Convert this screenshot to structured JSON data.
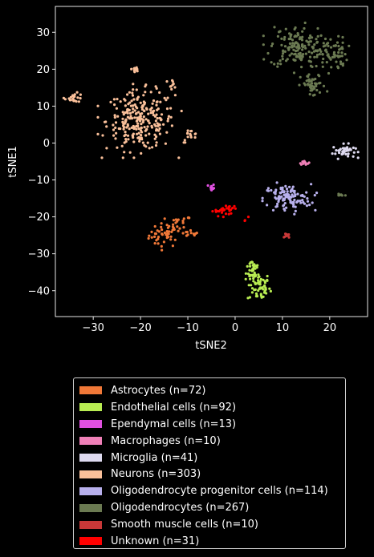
{
  "chart_data": {
    "type": "scatter",
    "xlabel": "tSNE2",
    "ylabel": "tSNE1",
    "xlim": [
      -38,
      28
    ],
    "ylim": [
      -47,
      37
    ],
    "xticks": [
      -30,
      -20,
      -10,
      0,
      10,
      20
    ],
    "yticks": [
      -40,
      -30,
      -20,
      -10,
      0,
      10,
      20,
      30
    ],
    "grid": false,
    "legend_position": "below-plot",
    "series": [
      {
        "name": "Astrocytes (n=72)",
        "color": "#f07838",
        "n": 72,
        "clusters": [
          {
            "cx": -15,
            "cy": -25,
            "sx": 1.6,
            "sy": 1.6,
            "f": 0.55
          },
          {
            "cx": -12,
            "cy": -22,
            "sx": 1.4,
            "sy": 1.2,
            "f": 0.3
          },
          {
            "cx": -9.5,
            "cy": -24.5,
            "sx": 0.8,
            "sy": 0.5,
            "f": 0.15
          }
        ]
      },
      {
        "name": "Endothelial cells (n=92)",
        "color": "#b8ec52",
        "n": 92,
        "clusters": [
          {
            "cx": 5,
            "cy": -39,
            "sx": 1.2,
            "sy": 2.0,
            "f": 0.65
          },
          {
            "cx": 3.8,
            "cy": -34,
            "sx": 0.7,
            "sy": 1.6,
            "f": 0.35
          }
        ]
      },
      {
        "name": "Ependymal cells (n=13)",
        "color": "#e050e0",
        "n": 13,
        "clusters": [
          {
            "cx": -5,
            "cy": -12.2,
            "sx": 0.3,
            "sy": 0.6,
            "f": 1.0
          }
        ]
      },
      {
        "name": "Macrophages (n=10)",
        "color": "#f080b8",
        "n": 10,
        "clusters": [
          {
            "cx": 14.5,
            "cy": -5.2,
            "sx": 0.5,
            "sy": 0.3,
            "f": 1.0
          }
        ]
      },
      {
        "name": "Microglia (n=41)",
        "color": "#dedaf0",
        "n": 41,
        "clusters": [
          {
            "cx": 23,
            "cy": -2.2,
            "sx": 1.2,
            "sy": 0.9,
            "f": 1.0
          }
        ]
      },
      {
        "name": "Neurons (n=303)",
        "color": "#fac09a",
        "n": 303,
        "clusters": [
          {
            "cx": -20,
            "cy": 6,
            "sx": 3.6,
            "sy": 4.0,
            "f": 0.82
          },
          {
            "cx": -34,
            "cy": 12.3,
            "sx": 1.0,
            "sy": 0.6,
            "f": 0.07
          },
          {
            "cx": -9.5,
            "cy": 2,
            "sx": 0.8,
            "sy": 0.9,
            "f": 0.05
          },
          {
            "cx": -13.5,
            "cy": 16,
            "sx": 0.7,
            "sy": 0.6,
            "f": 0.03
          },
          {
            "cx": -21,
            "cy": 20,
            "sx": 0.4,
            "sy": 0.3,
            "f": 0.03
          }
        ]
      },
      {
        "name": "Oligodendrocyte progenitor cells (n=114)",
        "color": "#b8b0ec",
        "n": 114,
        "clusters": [
          {
            "cx": 11,
            "cy": -15,
            "sx": 2.5,
            "sy": 1.9,
            "f": 1.0
          }
        ]
      },
      {
        "name": "Oligodendrocytes (n=267)",
        "color": "#6b7a52",
        "n": 267,
        "clusters": [
          {
            "cx": 13,
            "cy": 26,
            "sx": 2.8,
            "sy": 2.8,
            "f": 0.55
          },
          {
            "cx": 20.5,
            "cy": 24,
            "sx": 1.6,
            "sy": 2.3,
            "f": 0.25
          },
          {
            "cx": 16.5,
            "cy": 15.5,
            "sx": 1.3,
            "sy": 1.6,
            "f": 0.17
          },
          {
            "cx": 22.5,
            "cy": -14,
            "sx": 0.6,
            "sy": 0.2,
            "f": 0.03
          }
        ]
      },
      {
        "name": "Smooth muscle cells (n=10)",
        "color": "#c83838",
        "n": 10,
        "clusters": [
          {
            "cx": 11,
            "cy": -25,
            "sx": 0.3,
            "sy": 0.4,
            "f": 1.0
          }
        ]
      },
      {
        "name": "Unknown (n=31)",
        "color": "#ff0000",
        "n": 31,
        "clusters": [
          {
            "cx": -3,
            "cy": -18.5,
            "sx": 1.0,
            "sy": 0.6,
            "f": 0.6
          },
          {
            "cx": -0.8,
            "cy": -17.5,
            "sx": 0.6,
            "sy": 0.4,
            "f": 0.3
          },
          {
            "cx": 2.5,
            "cy": -20.5,
            "sx": 0.3,
            "sy": 0.3,
            "f": 0.1
          }
        ]
      }
    ]
  }
}
